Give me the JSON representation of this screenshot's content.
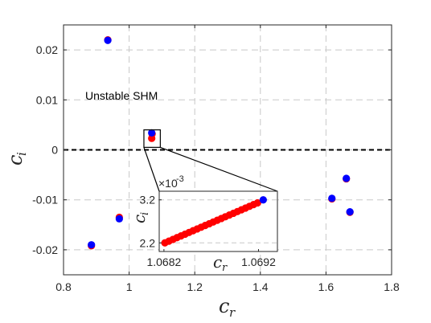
{
  "chart_data": [
    {
      "type": "scatter",
      "xlabel": "c",
      "xlabel_sub": "r",
      "ylabel": "c",
      "ylabel_sub": "i",
      "xlim": [
        0.8,
        1.8
      ],
      "ylim": [
        -0.025,
        0.025
      ],
      "xticks": [
        "0.8",
        "1",
        "1.2",
        "1.4",
        "1.6",
        "1.8"
      ],
      "yticks": [
        "-0.02",
        "-0.01",
        "0",
        "0.01",
        "0.02"
      ],
      "grid": true,
      "annotation": "Unstable SHM",
      "zero_line": 0,
      "zoom_box": {
        "x": [
          1.045,
          1.095
        ],
        "y": [
          0.0005,
          0.004
        ]
      },
      "colors": {
        "red": "#ff0000",
        "blue": "#0000ff",
        "grid": "#c8c8c8"
      },
      "series": [
        {
          "color": "red",
          "points": [
            [
              0.935,
              0.022
            ],
            [
              0.885,
              -0.0192
            ],
            [
              0.97,
              -0.0135
            ],
            [
              1.0688,
              0.0023
            ],
            [
              1.07,
              0.0032
            ],
            [
              1.618,
              -0.0098
            ],
            [
              1.662,
              -0.0058
            ],
            [
              1.673,
              -0.0125
            ]
          ]
        },
        {
          "color": "blue",
          "points": [
            [
              0.935,
              0.0219
            ],
            [
              0.885,
              -0.019
            ],
            [
              0.97,
              -0.0138
            ],
            [
              1.0688,
              0.0034
            ],
            [
              1.618,
              -0.0097
            ],
            [
              1.662,
              -0.0057
            ],
            [
              1.673,
              -0.0124
            ]
          ]
        }
      ]
    },
    {
      "type": "scatter",
      "inset": true,
      "xlabel": "c",
      "xlabel_sub": "r",
      "ylabel": "c",
      "ylabel_sub": "i",
      "exponent": "×10",
      "exponent_power": "-3",
      "xlim": [
        1.06815,
        1.0694
      ],
      "ylim": [
        2.0,
        3.4
      ],
      "xticks": [
        "1.0682",
        "1.0692"
      ],
      "xtick_values": [
        1.0682,
        1.0692
      ],
      "yticks": [
        "2.2",
        "3.2"
      ],
      "ytick_values": [
        2.2,
        3.2
      ],
      "red_line": {
        "x_start": 1.06821,
        "x_end": 1.06919,
        "y_start": 2.2,
        "y_end": 3.13,
        "count": 24
      },
      "blue_point": [
        1.06925,
        3.2
      ]
    }
  ]
}
